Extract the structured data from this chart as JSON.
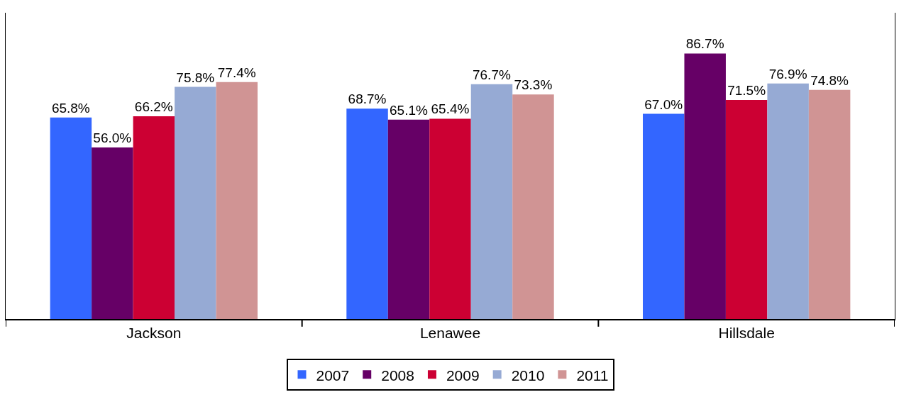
{
  "chart_data": {
    "type": "bar",
    "categories": [
      "Jackson",
      "Lenawee",
      "Hillsdale"
    ],
    "series": [
      {
        "name": "2007",
        "color": "#3366ff",
        "values": [
          65.8,
          68.7,
          67.0
        ],
        "value_labels": [
          "65.8%",
          "68.7%",
          "67.0%"
        ]
      },
      {
        "name": "2008",
        "color": "#660066",
        "values": [
          56.0,
          65.1,
          86.7
        ],
        "value_labels": [
          "56.0%",
          "65.1%",
          "86.7%"
        ]
      },
      {
        "name": "2009",
        "color": "#cc0033",
        "values": [
          66.2,
          65.4,
          71.5
        ],
        "value_labels": [
          "66.2%",
          "65.4%",
          "71.5%"
        ]
      },
      {
        "name": "2010",
        "color": "#96aad4",
        "values": [
          75.8,
          76.7,
          76.9
        ],
        "value_labels": [
          "75.8%",
          "76.7%",
          "76.9%"
        ]
      },
      {
        "name": "2011",
        "color": "#d09494",
        "values": [
          77.4,
          73.3,
          74.8
        ],
        "value_labels": [
          "77.4%",
          "73.3%",
          "74.8%"
        ]
      }
    ],
    "ylim": [
      0,
      100
    ],
    "tick_labels": "x",
    "legend": "bottom"
  }
}
